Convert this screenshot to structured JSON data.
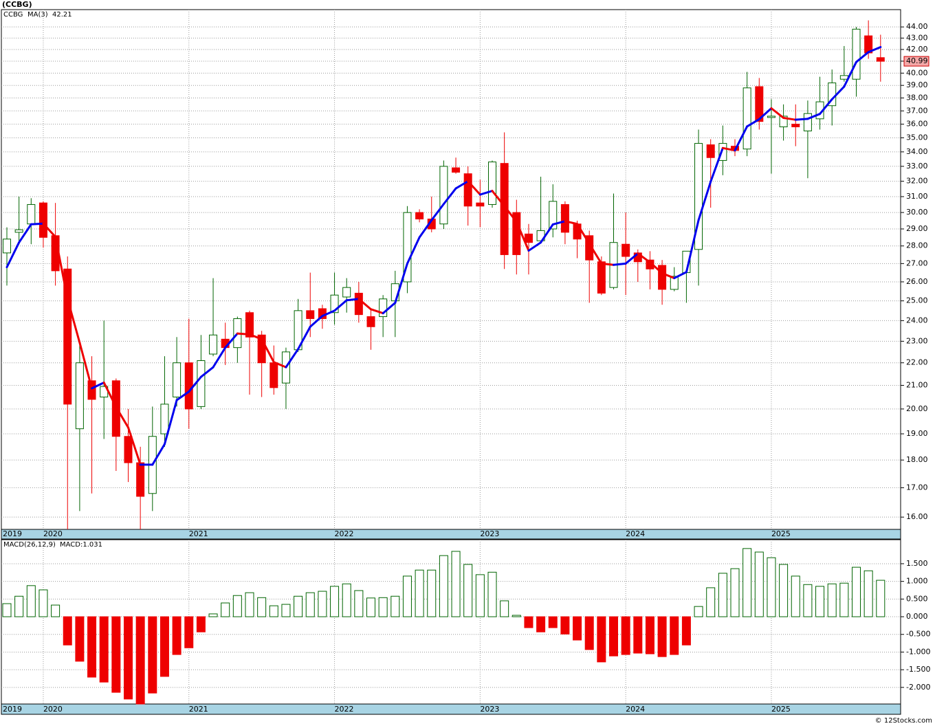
{
  "chart_data": [
    {
      "type": "candlestick",
      "title": "(CCBG)",
      "categories": [
        "2019",
        null,
        null,
        "2020",
        null,
        null,
        null,
        null,
        null,
        null,
        null,
        null,
        null,
        null,
        null,
        "2021",
        null,
        null,
        null,
        null,
        null,
        null,
        null,
        null,
        null,
        null,
        null,
        "2022",
        null,
        null,
        null,
        null,
        null,
        null,
        null,
        null,
        null,
        null,
        null,
        "2023",
        null,
        null,
        null,
        null,
        null,
        null,
        null,
        null,
        null,
        null,
        null,
        "2024",
        null,
        null,
        null,
        null,
        null,
        null,
        null,
        null,
        null,
        null,
        null,
        "2025",
        null,
        null,
        null,
        null,
        null,
        null,
        null,
        null,
        null
      ],
      "series": [
        {
          "name": "CCBG",
          "up_color": "#006400",
          "down_color": "#ee0000",
          "open": [
            27.6,
            28.8,
            29.3,
            30.6,
            28.6,
            26.7,
            19.2,
            21.2,
            20.5,
            21.2,
            18.9,
            17.9,
            16.8,
            19.0,
            20.5,
            22.0,
            20.1,
            22.4,
            23.1,
            22.7,
            24.4,
            23.3,
            22.0,
            21.1,
            22.6,
            24.5,
            24.6,
            24.4,
            25.2,
            25.4,
            24.2,
            24.2,
            25.0,
            26.0,
            30.0,
            29.6,
            29.3,
            32.9,
            32.5,
            30.6,
            30.5,
            33.2,
            30.0,
            28.7,
            28.3,
            29.0,
            30.5,
            29.3,
            28.6,
            27.1,
            25.7,
            28.1,
            27.6,
            27.2,
            26.9,
            25.6,
            26.5,
            27.8,
            34.5,
            33.4,
            34.4,
            34.2,
            38.9,
            36.5,
            35.8,
            36.0,
            35.5,
            36.4,
            37.4,
            39.5,
            39.5,
            43.2,
            41.3
          ],
          "high": [
            29.1,
            31.0,
            30.9,
            30.7,
            30.6,
            27.4,
            22.9,
            22.3,
            24.0,
            21.3,
            20.0,
            18.5,
            20.1,
            22.3,
            23.2,
            24.1,
            23.3,
            26.2,
            23.9,
            24.2,
            24.5,
            23.5,
            22.8,
            22.7,
            25.1,
            26.5,
            24.8,
            26.5,
            26.2,
            26.0,
            24.6,
            25.3,
            26.6,
            30.4,
            30.2,
            31.0,
            33.4,
            33.6,
            33.0,
            32.1,
            33.4,
            35.4,
            30.8,
            29.3,
            32.3,
            31.8,
            30.7,
            29.5,
            28.9,
            27.4,
            31.2,
            30.0,
            27.8,
            27.7,
            27.2,
            26.8,
            27.7,
            35.6,
            34.9,
            35.9,
            34.9,
            40.1,
            39.6,
            37.9,
            37.5,
            37.5,
            37.8,
            39.7,
            40.3,
            42.3,
            44.0,
            44.6,
            43.3
          ],
          "low": [
            25.8,
            28.1,
            28.1,
            27.9,
            25.8,
            15.6,
            16.2,
            16.8,
            18.8,
            17.6,
            17.2,
            15.6,
            16.2,
            18.5,
            20.1,
            19.2,
            20.0,
            22.3,
            21.9,
            22.0,
            20.6,
            20.5,
            20.6,
            20.0,
            22.5,
            23.2,
            23.6,
            23.8,
            24.4,
            23.9,
            22.6,
            23.2,
            23.2,
            25.4,
            29.4,
            28.8,
            29.0,
            32.5,
            29.2,
            29.1,
            30.3,
            26.7,
            26.4,
            26.4,
            28.2,
            28.5,
            28.1,
            27.3,
            24.9,
            25.3,
            25.6,
            25.3,
            26.0,
            25.6,
            24.8,
            25.5,
            24.9,
            25.8,
            30.3,
            32.4,
            33.7,
            33.7,
            35.6,
            32.5,
            34.8,
            34.4,
            32.2,
            35.6,
            35.9,
            39.3,
            38.1,
            41.2,
            39.3
          ],
          "close": [
            28.4,
            28.95,
            30.5,
            28.5,
            26.6,
            20.2,
            22.0,
            20.4,
            20.95,
            18.9,
            17.9,
            16.7,
            18.9,
            20.2,
            22.0,
            20.0,
            22.1,
            23.3,
            22.7,
            24.1,
            23.2,
            22.0,
            20.9,
            22.5,
            24.5,
            24.1,
            24.1,
            25.3,
            25.7,
            24.3,
            23.7,
            25.1,
            25.9,
            30.0,
            29.6,
            29.0,
            33.0,
            32.6,
            30.4,
            30.4,
            33.3,
            27.5,
            27.5,
            28.2,
            28.9,
            30.7,
            28.8,
            28.4,
            27.2,
            25.4,
            28.2,
            27.4,
            27.1,
            26.7,
            25.6,
            26.3,
            27.7,
            34.6,
            33.6,
            34.6,
            34.1,
            38.8,
            36.2,
            36.6,
            36.6,
            35.8,
            36.8,
            37.7,
            39.2,
            39.8,
            43.8,
            41.7,
            40.99
          ]
        }
      ],
      "ma": {
        "name": "MA(3)",
        "up_color": "#0000ee",
        "down_color": "#ee0000",
        "values": [
          26.8,
          28.2,
          29.28,
          29.32,
          28.53,
          25.1,
          22.93,
          20.87,
          21.12,
          20.08,
          19.25,
          17.83,
          17.83,
          18.6,
          20.37,
          20.73,
          21.37,
          21.8,
          22.7,
          23.37,
          23.33,
          23.1,
          22.03,
          21.8,
          22.63,
          23.7,
          24.23,
          24.5,
          25.03,
          25.1,
          24.57,
          24.37,
          24.9,
          27.0,
          28.5,
          29.53,
          30.53,
          31.53,
          32.0,
          31.13,
          31.37,
          30.4,
          29.43,
          27.73,
          28.2,
          29.27,
          29.47,
          29.3,
          28.13,
          27.0,
          26.93,
          27.0,
          27.57,
          27.07,
          26.47,
          26.2,
          26.53,
          29.53,
          31.97,
          34.27,
          34.1,
          35.83,
          36.37,
          37.2,
          36.47,
          36.33,
          36.4,
          36.77,
          37.9,
          38.9,
          40.93,
          41.77,
          42.21
        ]
      },
      "log_scale": true,
      "grid": true,
      "ylim": [
        15.6,
        45.6
      ],
      "yticks": [
        {
          "value": 16,
          "label": "16.00"
        },
        {
          "value": 17,
          "label": "17.00"
        },
        {
          "value": 18,
          "label": "18.00"
        },
        {
          "value": 19,
          "label": "19.00"
        },
        {
          "value": 20,
          "label": "20.00"
        },
        {
          "value": 21,
          "label": "21.00"
        },
        {
          "value": 22,
          "label": "22.00"
        },
        {
          "value": 23,
          "label": "23.00"
        },
        {
          "value": 24,
          "label": "24.00"
        },
        {
          "value": 25,
          "label": "25.00"
        },
        {
          "value": 26,
          "label": "26.00"
        },
        {
          "value": 27,
          "label": "27.00"
        },
        {
          "value": 28,
          "label": "28.00"
        },
        {
          "value": 29,
          "label": "29.00"
        },
        {
          "value": 30,
          "label": "30.00"
        },
        {
          "value": 31,
          "label": "31.00"
        },
        {
          "value": 32,
          "label": "32.00"
        },
        {
          "value": 33,
          "label": "33.00"
        },
        {
          "value": 34,
          "label": "34.00"
        },
        {
          "value": 35,
          "label": "35.00"
        },
        {
          "value": 36,
          "label": "36.00"
        },
        {
          "value": 37,
          "label": "37.00"
        },
        {
          "value": 38,
          "label": "38.00"
        },
        {
          "value": 39,
          "label": "39.00"
        },
        {
          "value": 40,
          "label": "40.00"
        },
        {
          "value": 41,
          "label": "41.00"
        },
        {
          "value": 42,
          "label": "42.00"
        },
        {
          "value": 43,
          "label": "43.00"
        },
        {
          "value": 44,
          "label": "44.00"
        }
      ]
    },
    {
      "type": "bar",
      "title": "MACD(26,12,9)",
      "value_name": "MACD:",
      "categories": [
        "2019",
        null,
        null,
        "2020",
        null,
        null,
        null,
        null,
        null,
        null,
        null,
        null,
        null,
        null,
        null,
        "2021",
        null,
        null,
        null,
        null,
        null,
        null,
        null,
        null,
        null,
        null,
        null,
        "2022",
        null,
        null,
        null,
        null,
        null,
        null,
        null,
        null,
        null,
        null,
        null,
        "2023",
        null,
        null,
        null,
        null,
        null,
        null,
        null,
        null,
        null,
        null,
        null,
        "2024",
        null,
        null,
        null,
        null,
        null,
        null,
        null,
        null,
        null,
        null,
        null,
        "2025",
        null,
        null,
        null,
        null,
        null,
        null,
        null,
        null,
        null
      ],
      "values": [
        0.37,
        0.58,
        0.88,
        0.76,
        0.33,
        -0.8,
        -1.26,
        -1.71,
        -1.85,
        -2.14,
        -2.33,
        -2.47,
        -2.16,
        -1.69,
        -1.07,
        -0.88,
        -0.43,
        0.08,
        0.39,
        0.6,
        0.68,
        0.54,
        0.31,
        0.35,
        0.58,
        0.68,
        0.72,
        0.86,
        0.93,
        0.74,
        0.53,
        0.54,
        0.58,
        1.15,
        1.32,
        1.32,
        1.73,
        1.85,
        1.48,
        1.19,
        1.26,
        0.45,
        0.04,
        -0.31,
        -0.43,
        -0.31,
        -0.49,
        -0.66,
        -0.93,
        -1.28,
        -1.11,
        -1.07,
        -1.03,
        -1.05,
        -1.13,
        -1.07,
        -0.8,
        0.29,
        0.82,
        1.23,
        1.36,
        1.93,
        1.83,
        1.67,
        1.48,
        1.15,
        0.91,
        0.86,
        0.93,
        0.95,
        1.4,
        1.3,
        1.031
      ],
      "pos_color": "#006400",
      "neg_color": "#ee0000",
      "label_color": "#0000ee",
      "grid": true,
      "ylim": [
        -2.47,
        2.18
      ],
      "yticks": [
        {
          "value": 1.5,
          "label": "1.500"
        },
        {
          "value": 1,
          "label": "1.000"
        },
        {
          "value": 0.5,
          "label": "0.500"
        },
        {
          "value": 0,
          "label": "0.000"
        },
        {
          "value": -0.5,
          "label": "-0.500"
        },
        {
          "value": -1,
          "label": "-1.000"
        },
        {
          "value": -1.5,
          "label": "-1.500"
        },
        {
          "value": -2,
          "label": "-2.000"
        }
      ]
    }
  ],
  "footer": "© 12Stocks.com"
}
